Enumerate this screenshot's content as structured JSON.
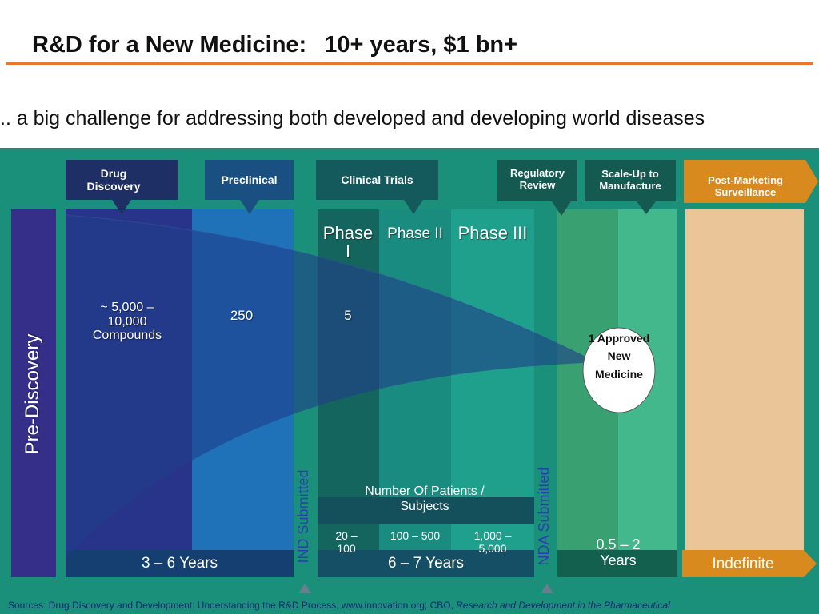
{
  "title": {
    "part1": "R&D for a New Medicine:",
    "part2": "10+ years, $1 bn+"
  },
  "subtitle": ".. a big challenge for addressing both developed and developing world diseases",
  "headers": {
    "drug_discovery": "Drug Discovery",
    "preclinical": "Preclinical",
    "clinical_trials": "Clinical Trials",
    "regulatory_review": "Regulatory Review",
    "scale_up": "Scale-Up to Manufacture",
    "post_marketing": "Post-Marketing Surveillance"
  },
  "pre_discovery": "Pre-Discovery",
  "compounds": {
    "drug_discovery": "~ 5,000 – 10,000 Compounds",
    "preclinical": "250",
    "phase1": "5"
  },
  "phases": {
    "phase1": "Phase I",
    "phase2": "Phase II",
    "phase3": "Phase III"
  },
  "approved": "1 Approved New Medicine",
  "ind_submitted": "IND Submitted",
  "nda_submitted": "NDA Submitted",
  "patients": {
    "label": "Number Of Patients / Subjects",
    "phase1": "20 – 100",
    "phase2": "100 – 500",
    "phase3": "1,000 – 5,000"
  },
  "durations": {
    "discovery": "3 – 6 Years",
    "clinical": "6 – 7 Years",
    "regulatory": "0.5 – 2 Years",
    "post": "Indefinite"
  },
  "sources": {
    "plain": "Sources: Drug Discovery and Development: Understanding the R&D Process, www.innovation.org; CBO, ",
    "italic": "Research and Development in the Pharmaceutical"
  },
  "colors": {
    "accent_orange": "#e8782e",
    "panel_teal": "#1a8f7a",
    "navy": "#1d2f64",
    "blue": "#1f6fb4",
    "dark_teal": "#11655e",
    "teal": "#199a87",
    "green": "#3ba27c",
    "peach": "#eac597"
  }
}
